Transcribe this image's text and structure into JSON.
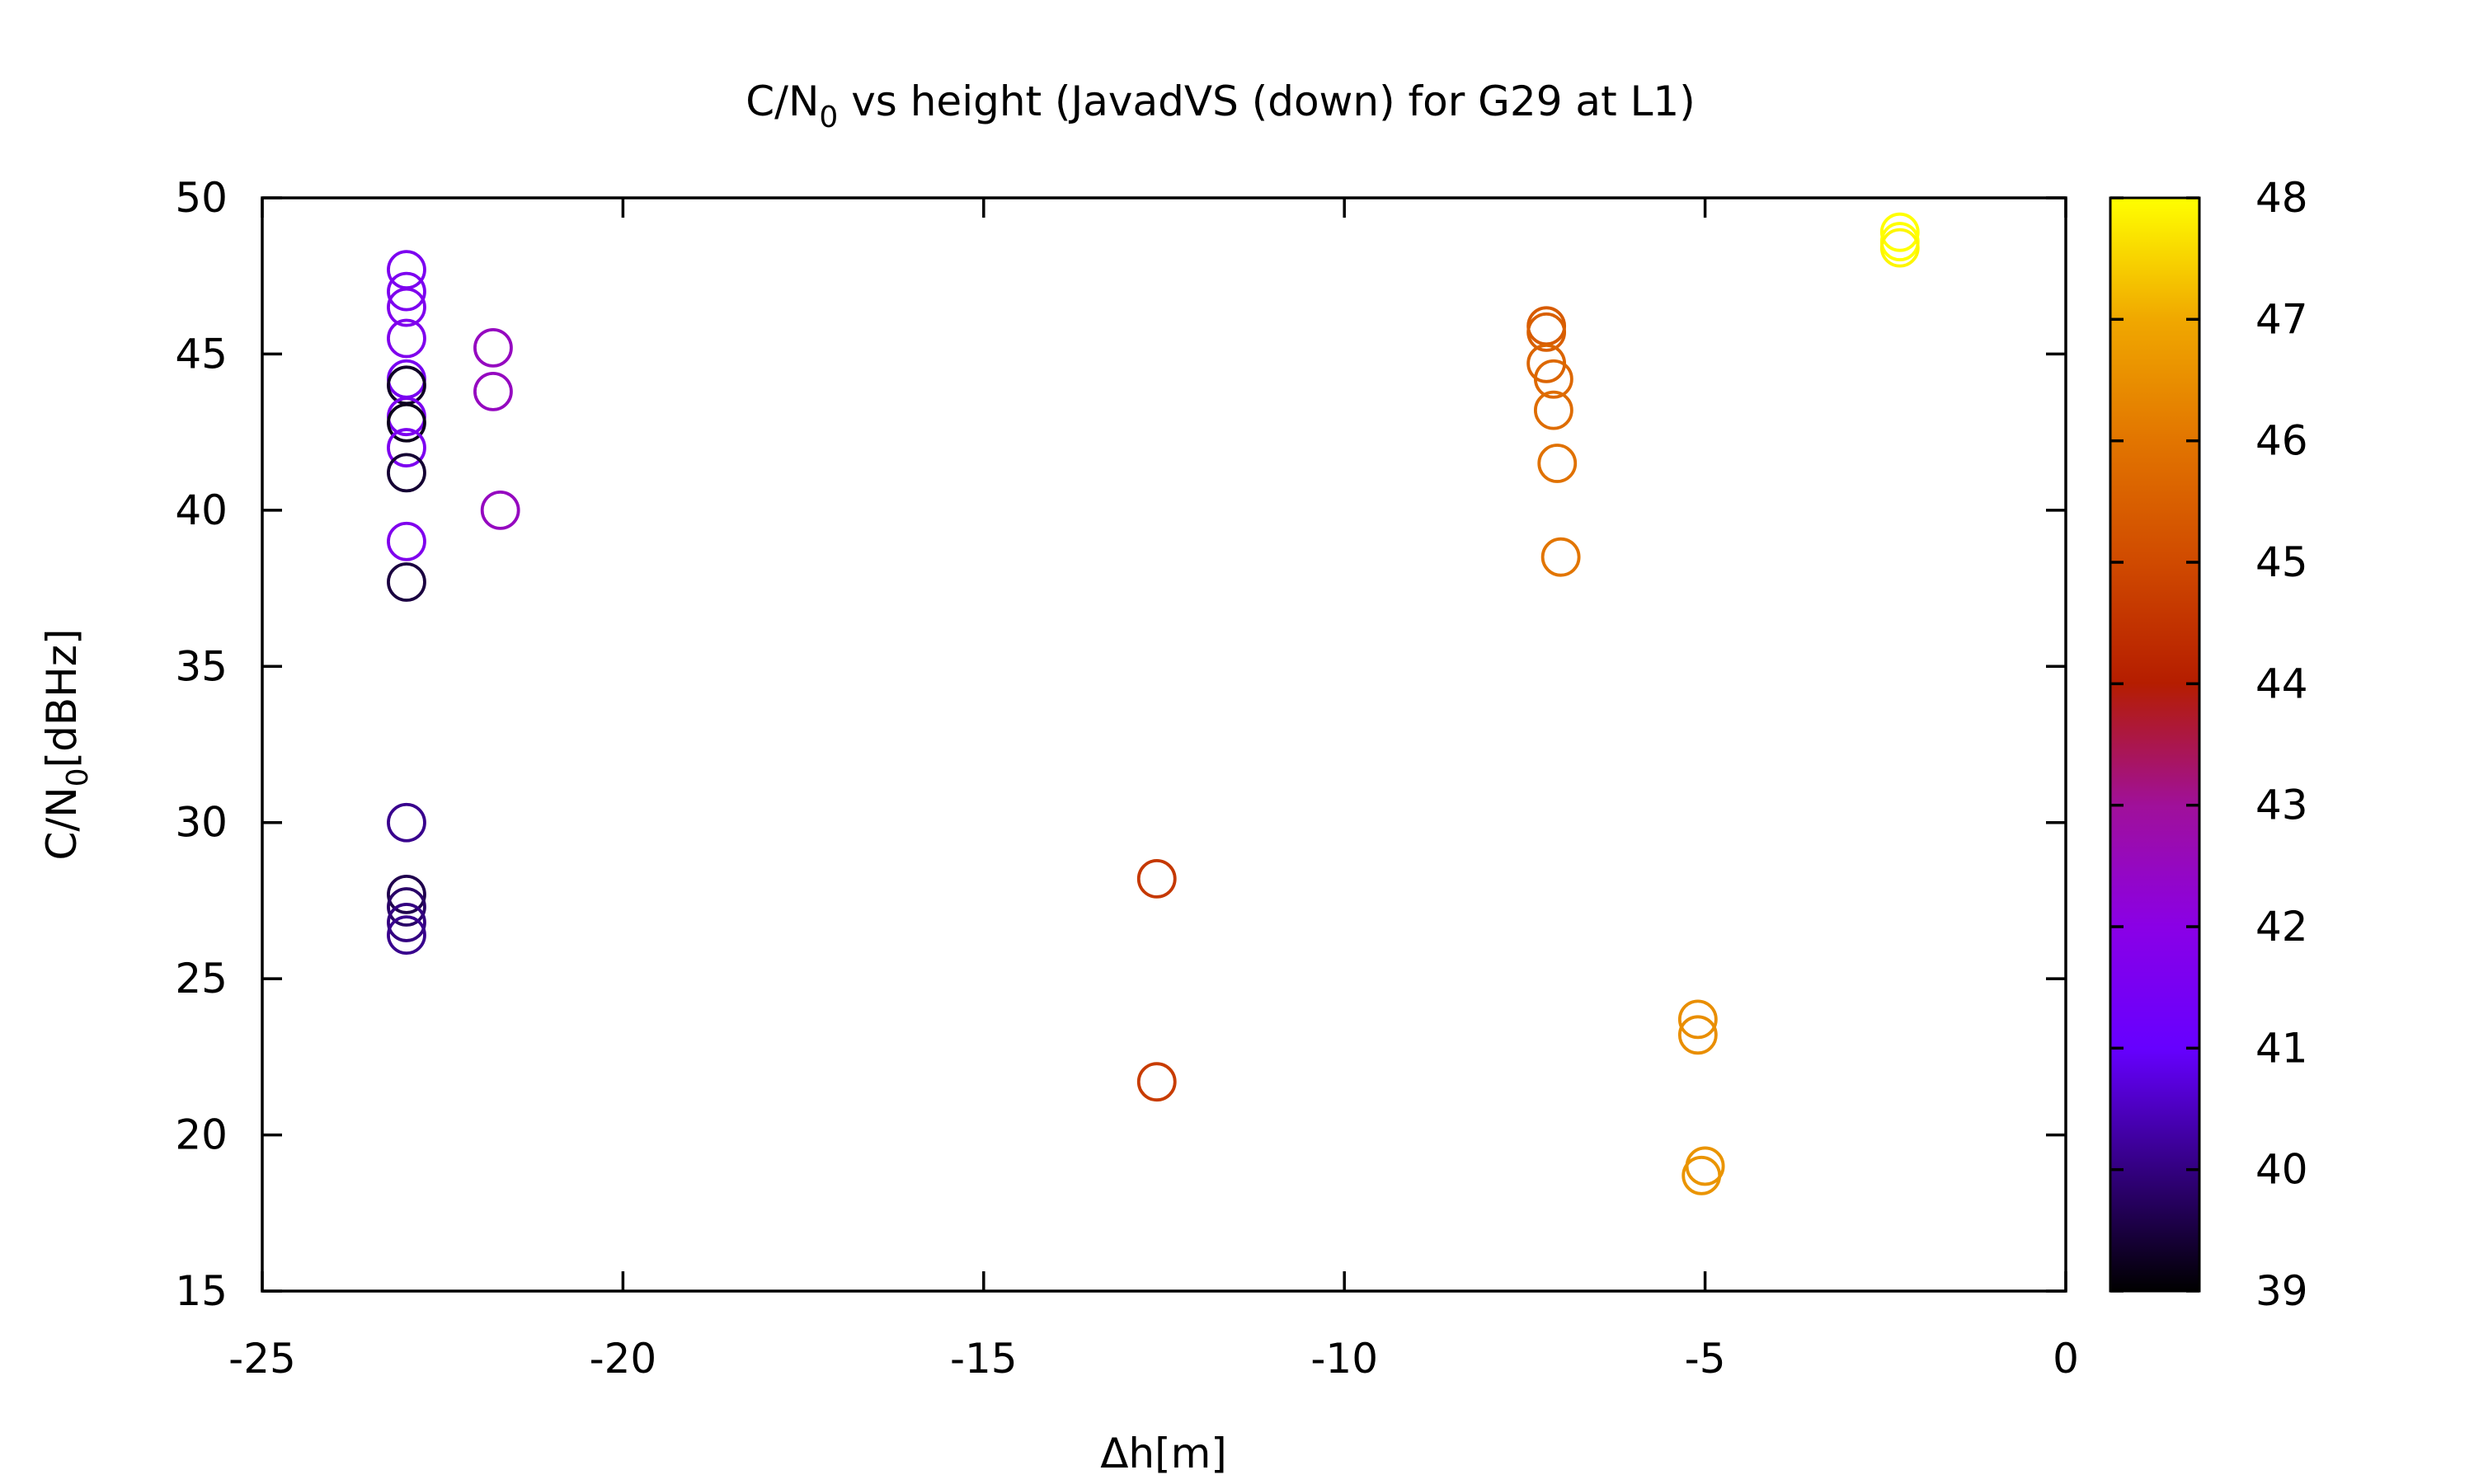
{
  "chart_data": {
    "type": "scatter",
    "title": "C/N",
    "title_sub": "0",
    "title_rest": " vs height (JavadVS (down) for G29 at L1)",
    "xlabel": "Δh[m]",
    "ylabel": "C/N",
    "ylabel_sub": "0",
    "ylabel_rest": "[dBHz]",
    "xlim": [
      -25,
      0
    ],
    "ylim": [
      15,
      50
    ],
    "x_ticks": [
      -25,
      -20,
      -15,
      -10,
      -5,
      0
    ],
    "y_ticks": [
      15,
      20,
      25,
      30,
      35,
      40,
      45,
      50
    ],
    "colorbar": {
      "range": [
        39,
        48
      ],
      "ticks": [
        39,
        40,
        41,
        42,
        43,
        44,
        45,
        46,
        47,
        48
      ],
      "palette": "gnuplot (black-purple-red-orange-yellow)"
    },
    "grid": false,
    "legend": "none",
    "marker": "open-circle",
    "points": [
      {
        "x": -23.0,
        "y": 47.7,
        "c": 41.6
      },
      {
        "x": -23.0,
        "y": 47.0,
        "c": 41.6
      },
      {
        "x": -23.0,
        "y": 46.5,
        "c": 41.7
      },
      {
        "x": -23.0,
        "y": 45.5,
        "c": 41.7
      },
      {
        "x": -23.0,
        "y": 44.2,
        "c": 41.5
      },
      {
        "x": -23.0,
        "y": 44.0,
        "c": 39.3
      },
      {
        "x": -23.0,
        "y": 43.0,
        "c": 41.6
      },
      {
        "x": -23.0,
        "y": 42.8,
        "c": 39.2
      },
      {
        "x": -23.0,
        "y": 42.0,
        "c": 41.6
      },
      {
        "x": -23.0,
        "y": 41.2,
        "c": 39.4
      },
      {
        "x": -23.0,
        "y": 39.0,
        "c": 41.7
      },
      {
        "x": -23.0,
        "y": 37.7,
        "c": 39.5
      },
      {
        "x": -23.0,
        "y": 30.0,
        "c": 40.1
      },
      {
        "x": -23.0,
        "y": 27.7,
        "c": 39.6
      },
      {
        "x": -23.0,
        "y": 27.3,
        "c": 39.8
      },
      {
        "x": -23.0,
        "y": 26.8,
        "c": 40.0
      },
      {
        "x": -23.0,
        "y": 26.4,
        "c": 40.1
      },
      {
        "x": -21.8,
        "y": 45.2,
        "c": 42.5
      },
      {
        "x": -21.8,
        "y": 43.8,
        "c": 42.5
      },
      {
        "x": -21.7,
        "y": 40.0,
        "c": 42.5
      },
      {
        "x": -12.6,
        "y": 28.2,
        "c": 44.6
      },
      {
        "x": -12.6,
        "y": 21.7,
        "c": 44.7
      },
      {
        "x": -7.2,
        "y": 45.9,
        "c": 45.4
      },
      {
        "x": -7.2,
        "y": 45.7,
        "c": 45.5
      },
      {
        "x": -7.2,
        "y": 44.7,
        "c": 45.6
      },
      {
        "x": -7.1,
        "y": 44.2,
        "c": 45.7
      },
      {
        "x": -7.1,
        "y": 43.2,
        "c": 45.8
      },
      {
        "x": -7.05,
        "y": 41.5,
        "c": 45.9
      },
      {
        "x": -7.0,
        "y": 38.5,
        "c": 46.0
      },
      {
        "x": -5.1,
        "y": 23.7,
        "c": 46.5
      },
      {
        "x": -5.1,
        "y": 23.2,
        "c": 46.5
      },
      {
        "x": -5.0,
        "y": 19.0,
        "c": 46.6
      },
      {
        "x": -5.05,
        "y": 18.7,
        "c": 46.6
      },
      {
        "x": -2.3,
        "y": 48.9,
        "c": 48.0
      },
      {
        "x": -2.3,
        "y": 48.6,
        "c": 48.0
      },
      {
        "x": -2.3,
        "y": 48.4,
        "c": 47.9
      }
    ]
  }
}
